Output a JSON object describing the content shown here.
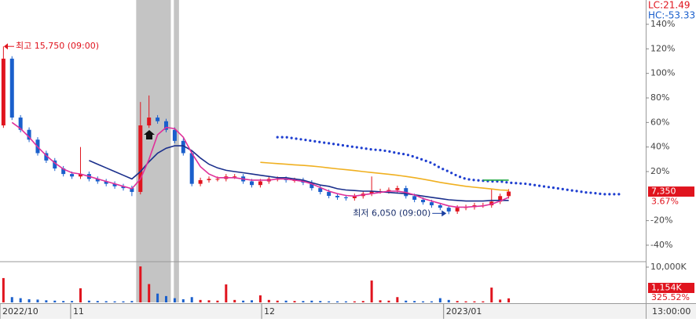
{
  "chart_data": {
    "type": "candlestick",
    "lc_label": "LC:21.49",
    "hc_label": "HC:-53.33",
    "high_label": "최고 15,750 (09:00)",
    "low_label": "최저 6,050 (09:00)",
    "last_price_label": "7,350",
    "last_change_label": "3.67%",
    "time_label": "13:00:00",
    "xlim": [
      -0.4,
      75
    ],
    "ylim": [
      -52.8,
      159.8
    ],
    "yticks": [
      {
        "value": -40,
        "label": "-40%"
      },
      {
        "value": -20,
        "label": "-20%"
      },
      {
        "value": 20,
        "label": "20%"
      },
      {
        "value": 40,
        "label": "40%"
      },
      {
        "value": 60,
        "label": "60%"
      },
      {
        "value": 80,
        "label": "80%"
      },
      {
        "value": 100,
        "label": "100%"
      },
      {
        "value": 120,
        "label": "120%"
      },
      {
        "value": 140,
        "label": "140%"
      }
    ],
    "xticks": [
      {
        "value": -0.4,
        "label": "2022/10"
      },
      {
        "value": 7.85,
        "label": "11"
      },
      {
        "value": 30.15,
        "label": "12"
      },
      {
        "value": 51.4,
        "label": "2023/01"
      }
    ],
    "highlights": [
      [
        15.5,
        19.55
      ],
      [
        19.9,
        20.5
      ]
    ],
    "up_color": "#e0141e",
    "down_color": "#1a5fcc",
    "candles": {
      "open": [
        57.6,
        112,
        64,
        54,
        46,
        35,
        29,
        22.5,
        18,
        16,
        18,
        14,
        12,
        10,
        8,
        6.5,
        3.4,
        57.6,
        64,
        61,
        54,
        45,
        35,
        10,
        13,
        14,
        14,
        16,
        16,
        12,
        9,
        12,
        14,
        14,
        13,
        13,
        11,
        6.5,
        3.4,
        0.2,
        -1,
        -1.7,
        0,
        2,
        4,
        4,
        5,
        6.5,
        0,
        -3,
        -5,
        -7.5,
        -9.5,
        -12.5,
        -9.5,
        -9,
        -7.5,
        -7.5,
        -4.5,
        0
      ],
      "high": [
        122,
        114,
        66,
        56,
        48,
        37,
        31,
        24.5,
        20,
        40,
        20,
        16,
        14,
        12,
        10,
        8.5,
        76.7,
        82,
        66,
        63,
        56,
        47,
        37,
        15,
        16,
        16,
        18,
        18,
        18,
        14,
        14,
        16,
        16,
        16,
        15,
        15,
        13,
        8.5,
        5.4,
        2.2,
        1,
        2,
        4,
        16,
        6,
        7,
        8.5,
        8.5,
        2,
        -1,
        -3,
        -5.5,
        -7.5,
        -7.5,
        -7,
        -5.5,
        -5.5,
        5.3,
        2,
        5.7
      ],
      "low": [
        55.6,
        62,
        52,
        44,
        33,
        27,
        20.5,
        16,
        14,
        14,
        12,
        10,
        8,
        6,
        4.5,
        0,
        1.4,
        55.6,
        59,
        52,
        43,
        33,
        8,
        8,
        11,
        12,
        12,
        14,
        10,
        7,
        7,
        10,
        12,
        11,
        11,
        9,
        4.5,
        1.4,
        -1.8,
        -3,
        -3.7,
        -3.7,
        -2,
        0,
        2,
        2,
        3,
        -2,
        -5,
        -7,
        -9.5,
        -11.5,
        -14.7,
        -14.5,
        -11.5,
        -11,
        -9.5,
        -9.5,
        -6.5,
        -2
      ],
      "close": [
        112,
        64,
        54,
        46,
        35,
        29,
        22.5,
        18,
        16,
        18,
        14,
        12,
        10,
        8,
        6.5,
        3.4,
        57.6,
        64,
        61,
        54,
        45,
        35,
        10,
        13,
        14,
        14,
        16,
        16,
        12,
        9,
        12,
        14,
        14,
        13,
        13,
        11,
        6.5,
        3.4,
        0.2,
        -1,
        -1.7,
        0,
        2,
        4,
        4,
        5,
        6.5,
        0,
        -3,
        -5,
        -7.5,
        -9.5,
        -12.5,
        -9.5,
        -9,
        -7.5,
        -7.5,
        -4.5,
        0,
        3.67
      ]
    },
    "lines": {
      "x": [
        0,
        1,
        2,
        3,
        4,
        5,
        6,
        7,
        8,
        9,
        10,
        11,
        12,
        13,
        14,
        15,
        16,
        17,
        18,
        19,
        20,
        21,
        22,
        23,
        24,
        25,
        26,
        27,
        28,
        29,
        30,
        31,
        32,
        33,
        34,
        35,
        36,
        37,
        38,
        39,
        40,
        41,
        42,
        43,
        44,
        45,
        46,
        47,
        48,
        49,
        50,
        51,
        52,
        53,
        54,
        55,
        56,
        57,
        58,
        59,
        60,
        61,
        62,
        63,
        64,
        65,
        66,
        67,
        68,
        69,
        70,
        71,
        72
      ],
      "series": [
        {
          "color": "#f0b020",
          "style": "solid",
          "values": [
            null,
            null,
            null,
            null,
            null,
            null,
            null,
            null,
            null,
            null,
            null,
            null,
            null,
            null,
            null,
            null,
            null,
            null,
            null,
            null,
            null,
            null,
            null,
            null,
            null,
            null,
            null,
            null,
            null,
            null,
            27.5,
            27,
            26.5,
            26,
            25.5,
            25,
            24.5,
            23.8,
            23,
            22.2,
            21.5,
            20.8,
            20,
            19.2,
            18.5,
            17.8,
            17,
            16,
            15,
            13.8,
            12.5,
            11.2,
            10,
            9,
            8,
            7.2,
            6.5,
            5.8,
            5,
            4.7,
            null,
            null,
            null,
            null,
            null,
            null,
            null,
            null,
            null,
            null,
            null,
            null,
            null
          ]
        },
        {
          "color": "#1a2f8c",
          "style": "solid",
          "values": [
            null,
            null,
            null,
            null,
            null,
            null,
            null,
            null,
            null,
            null,
            29,
            26,
            23,
            20,
            17,
            14,
            20,
            28,
            35,
            39,
            41,
            41,
            37,
            31,
            26,
            23,
            21,
            20,
            19,
            18,
            17,
            16,
            15,
            15,
            14,
            13,
            11,
            9,
            8,
            6,
            5,
            4.5,
            4,
            4,
            3.5,
            3,
            2.5,
            2,
            1,
            0,
            -1,
            -2,
            -3,
            -3.5,
            -4,
            -4,
            -4,
            -3.5,
            -3.5,
            -3.5,
            null,
            null,
            null,
            null,
            null,
            null,
            null,
            null,
            null,
            null,
            null,
            null,
            null
          ]
        },
        {
          "color": "#e0309a",
          "style": "solid",
          "values": [
            null,
            60,
            55,
            48,
            40,
            33,
            27,
            22,
            19,
            18,
            16,
            14,
            12,
            10,
            8,
            6,
            14,
            30,
            50,
            56,
            55,
            48,
            35,
            24,
            18,
            15,
            15,
            15,
            14,
            13,
            13,
            13,
            14,
            14,
            13,
            12,
            10,
            7,
            4,
            2,
            0.5,
            0,
            1,
            2,
            3,
            4,
            4,
            3,
            1,
            -2,
            -4,
            -6,
            -8,
            -9,
            -9,
            -8.5,
            -8,
            -6.5,
            -4,
            -1,
            null,
            null,
            null,
            null,
            null,
            null,
            null,
            null,
            null,
            null,
            null,
            null,
            null
          ]
        },
        {
          "color": "#1f3fd0",
          "style": "dotted",
          "values": [
            null,
            null,
            null,
            null,
            null,
            null,
            null,
            null,
            null,
            null,
            null,
            null,
            null,
            null,
            null,
            null,
            null,
            null,
            null,
            null,
            null,
            null,
            null,
            null,
            null,
            null,
            null,
            null,
            null,
            null,
            null,
            null,
            48,
            48,
            47,
            46,
            45,
            44,
            43,
            42,
            41,
            40,
            39,
            38,
            37.5,
            36.5,
            35,
            34,
            32,
            29.5,
            27,
            23,
            20,
            16.5,
            14,
            13,
            12.5,
            12,
            12,
            11,
            10.5,
            10,
            9,
            8,
            7,
            6,
            5,
            4,
            3,
            2.5,
            1.5,
            1.5,
            1.5
          ]
        },
        {
          "color": "#22aa44",
          "style": "solid",
          "values": [
            null,
            null,
            null,
            null,
            null,
            null,
            null,
            null,
            null,
            null,
            null,
            null,
            null,
            null,
            null,
            null,
            null,
            null,
            null,
            null,
            null,
            null,
            null,
            null,
            null,
            null,
            null,
            null,
            null,
            null,
            null,
            null,
            null,
            null,
            null,
            null,
            null,
            null,
            null,
            null,
            null,
            null,
            null,
            null,
            null,
            null,
            null,
            null,
            null,
            null,
            null,
            null,
            null,
            null,
            null,
            null,
            13,
            13,
            13,
            13,
            null,
            null,
            null,
            null,
            null,
            null,
            null,
            null,
            null,
            null,
            null,
            null,
            null
          ]
        }
      ]
    },
    "volume": {
      "ylim": [
        0,
        11100
      ],
      "yticks": [
        {
          "value": 10000,
          "label": "10,000K"
        }
      ],
      "last_label": "1,154K",
      "ratio_label": "325.52%",
      "values": [
        6900,
        1500,
        1200,
        900,
        800,
        600,
        500,
        400,
        400,
        4000,
        500,
        400,
        350,
        300,
        300,
        400,
        10200,
        5200,
        2500,
        1800,
        1200,
        900,
        1500,
        700,
        600,
        500,
        5100,
        700,
        500,
        600,
        2000,
        700,
        500,
        500,
        400,
        400,
        500,
        400,
        300,
        300,
        300,
        300,
        400,
        6200,
        600,
        500,
        1500,
        500,
        400,
        300,
        300,
        1200,
        700,
        400,
        300,
        300,
        300,
        4200,
        800,
        1154
      ]
    }
  }
}
